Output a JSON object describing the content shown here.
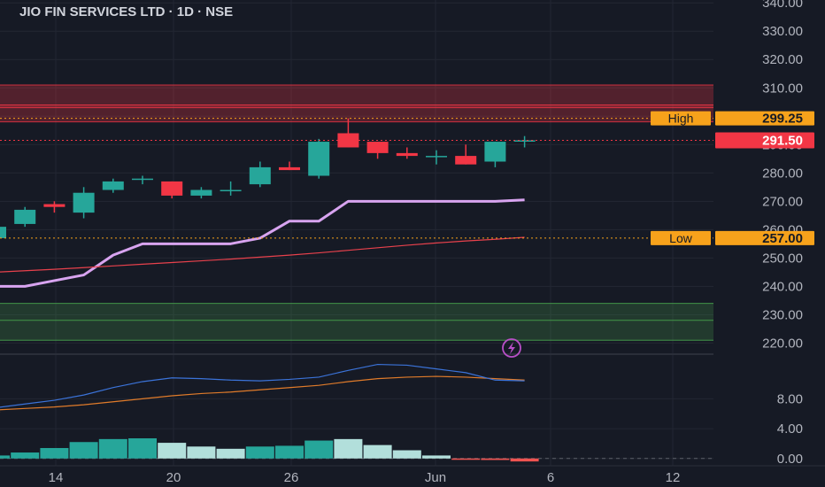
{
  "header": {
    "title": "JIO FIN SERVICES LTD · 1D · NSE"
  },
  "colors": {
    "background": "#161a25",
    "up": "#26a69a",
    "down": "#f23645",
    "kijun": "#d8a4f0",
    "ema": "#e8414c",
    "resistance": "#f23645",
    "support": "#4caf50",
    "marker": "#f7a21b",
    "adx": "#3b73d9",
    "adx2": "#e07b2a",
    "axis_text": "#b2b5be"
  },
  "chart_data": [
    {
      "type": "candlestick",
      "title": "JIO FIN SERVICES LTD · 1D · NSE",
      "x_labels": [
        "14",
        "20",
        "26",
        "Jun",
        "6",
        "12"
      ],
      "y_ticks": [
        "220.00",
        "230.00",
        "240.00",
        "250.00",
        "260.00",
        "270.00",
        "280.00",
        "290.00",
        "300.00",
        "310.00",
        "320.00",
        "330.00",
        "340.00"
      ],
      "ylim": [
        217,
        341
      ],
      "candles": [
        {
          "o": 257,
          "h": 262,
          "l": 257,
          "c": 261
        },
        {
          "o": 262,
          "h": 268,
          "l": 261,
          "c": 267
        },
        {
          "o": 269,
          "h": 270,
          "l": 266,
          "c": 268
        },
        {
          "o": 266,
          "h": 275,
          "l": 264,
          "c": 273
        },
        {
          "o": 274,
          "h": 278,
          "l": 273,
          "c": 277
        },
        {
          "o": 278,
          "h": 279,
          "l": 276,
          "c": 278
        },
        {
          "o": 277,
          "h": 277,
          "l": 271,
          "c": 272
        },
        {
          "o": 272,
          "h": 275,
          "l": 271,
          "c": 274
        },
        {
          "o": 274,
          "h": 277,
          "l": 272,
          "c": 274
        },
        {
          "o": 276,
          "h": 284,
          "l": 275,
          "c": 282
        },
        {
          "o": 282,
          "h": 284,
          "l": 281,
          "c": 281
        },
        {
          "o": 279,
          "h": 292,
          "l": 278,
          "c": 291
        },
        {
          "o": 294,
          "h": 299.25,
          "l": 289,
          "c": 289
        },
        {
          "o": 291,
          "h": 291,
          "l": 285,
          "c": 287
        },
        {
          "o": 287,
          "h": 289,
          "l": 285,
          "c": 286
        },
        {
          "o": 286,
          "h": 288,
          "l": 283,
          "c": 286
        },
        {
          "o": 286,
          "h": 290,
          "l": 283,
          "c": 283
        },
        {
          "o": 284,
          "h": 291,
          "l": 282,
          "c": 291
        },
        {
          "o": 291.5,
          "h": 293,
          "l": 289,
          "c": 291.5
        }
      ],
      "kijun_line": [
        240,
        240,
        242,
        244,
        251,
        255,
        255,
        255,
        255,
        257,
        263,
        263,
        270,
        270,
        270,
        270,
        270,
        270,
        270.5
      ],
      "ema_line": [
        245,
        245.5,
        246,
        246.6,
        247.2,
        247.8,
        248.4,
        249,
        249.6,
        250.3,
        251,
        251.8,
        252.7,
        253.6,
        254.5,
        255.3,
        256,
        256.6,
        257.3
      ],
      "zones": [
        {
          "name": "resistance",
          "from": 303,
          "to": 311
        },
        {
          "name": "resistance-lower",
          "from": 298,
          "to": 304
        },
        {
          "name": "support",
          "from": 221,
          "to": 234
        }
      ],
      "markers": [
        {
          "label": "High",
          "value_text": "299.25",
          "value": 299.25
        },
        {
          "label": "Low",
          "value_text": "257.00",
          "value": 257.0
        }
      ],
      "last_price": {
        "text": "291.50",
        "value": 291.5
      }
    },
    {
      "type": "line+bar",
      "y_ticks": [
        "0.00",
        "4.00",
        "8.00"
      ],
      "ylim": [
        -0.5,
        13.5
      ],
      "line_main": [
        6.8,
        7.3,
        7.8,
        8.5,
        9.5,
        10.3,
        10.8,
        10.7,
        10.5,
        10.4,
        10.6,
        10.9,
        11.8,
        12.6,
        12.5,
        12.0,
        11.5,
        10.5,
        10.4
      ],
      "line_signal": [
        6.5,
        6.7,
        6.9,
        7.2,
        7.6,
        8.0,
        8.4,
        8.7,
        8.9,
        9.2,
        9.5,
        9.8,
        10.3,
        10.7,
        10.9,
        11.0,
        10.9,
        10.7,
        10.5
      ],
      "histogram": [
        0.4,
        0.8,
        1.4,
        2.2,
        2.6,
        2.7,
        2.1,
        1.6,
        1.3,
        1.6,
        1.7,
        2.4,
        2.6,
        1.8,
        1.1,
        0.4,
        -0.1,
        -0.2,
        -0.4
      ]
    }
  ]
}
